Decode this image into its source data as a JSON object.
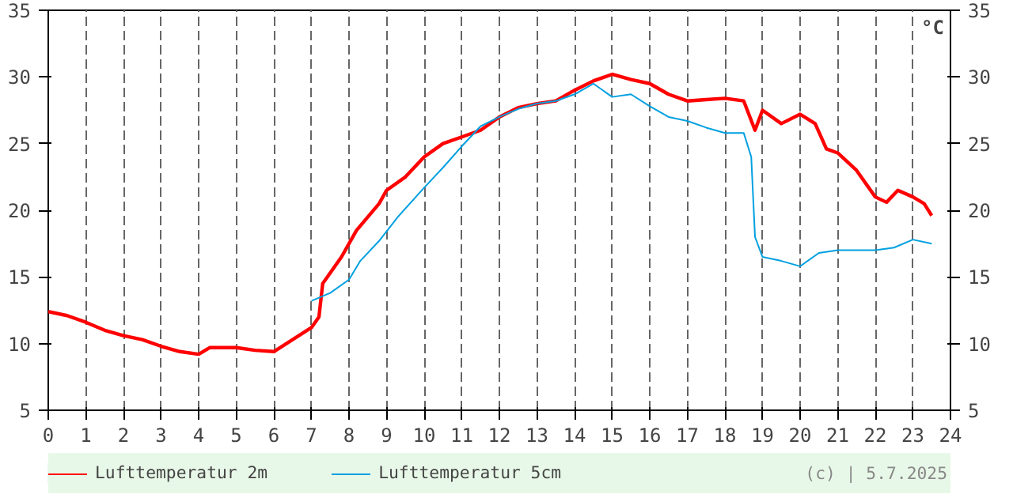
{
  "chart_data": {
    "type": "line",
    "y2label": "°C",
    "xlim": [
      0,
      24
    ],
    "xticks": [
      0,
      1,
      2,
      3,
      4,
      5,
      6,
      7,
      8,
      9,
      10,
      11,
      12,
      13,
      14,
      15,
      16,
      17,
      18,
      19,
      20,
      21,
      22,
      23,
      24
    ],
    "ylim": [
      5,
      35
    ],
    "yticks": [
      5,
      10,
      15,
      20,
      25,
      30,
      35
    ],
    "y2lim": [
      5,
      35
    ],
    "y2ticks": [
      5,
      10,
      15,
      20,
      25,
      30,
      35
    ],
    "grid": "x",
    "legend": "bottom",
    "annotations": [
      "(c) | 5.7.2025"
    ],
    "series": [
      {
        "name": "Lufttemperatur 2m",
        "color": "#ff0000",
        "x": [
          0,
          0.5,
          1,
          1.5,
          2,
          2.5,
          3,
          3.5,
          4,
          4.3,
          5,
          5.5,
          6,
          6.5,
          7,
          7.2,
          7.3,
          7.8,
          8.2,
          8.8,
          9,
          9.5,
          10,
          10.5,
          11,
          11.5,
          12,
          12.5,
          13,
          13.5,
          14,
          14.5,
          15,
          15.5,
          16,
          16.5,
          17,
          17.5,
          18,
          18.5,
          18.8,
          19,
          19.5,
          20,
          20.4,
          20.7,
          21,
          21.5,
          22,
          22.3,
          22.6,
          23,
          23.3,
          23.5
        ],
        "values": [
          12.4,
          12.1,
          11.6,
          11.0,
          10.6,
          10.3,
          9.8,
          9.4,
          9.2,
          9.7,
          9.7,
          9.5,
          9.4,
          10.3,
          11.2,
          12.0,
          14.5,
          16.5,
          18.5,
          20.5,
          21.5,
          22.5,
          24.0,
          25.0,
          25.5,
          26.0,
          27.0,
          27.7,
          28.0,
          28.2,
          29.0,
          29.7,
          30.2,
          29.8,
          29.5,
          28.7,
          28.2,
          28.3,
          28.4,
          28.2,
          26.0,
          27.5,
          26.5,
          27.2,
          26.5,
          24.6,
          24.3,
          23.0,
          21.0,
          20.6,
          21.5,
          21.0,
          20.5,
          19.6
        ]
      },
      {
        "name": "Lufttemperatur 5cm",
        "color": "#00a0e0",
        "x": [
          7.0,
          7.5,
          8,
          8.3,
          8.8,
          9.3,
          10,
          10.5,
          11,
          11.5,
          12,
          12.5,
          13,
          13.5,
          14,
          14.5,
          15,
          15.5,
          16,
          16.5,
          17,
          17.5,
          18,
          18.5,
          18.7,
          18.8,
          19,
          19.5,
          20,
          20.5,
          21,
          21.5,
          22,
          22.5,
          23,
          23.5
        ],
        "values": [
          13.2,
          13.8,
          14.8,
          16.2,
          17.7,
          19.5,
          21.7,
          23.2,
          24.8,
          26.3,
          27.0,
          27.6,
          28.0,
          28.2,
          28.7,
          29.5,
          28.5,
          28.7,
          27.8,
          27.0,
          26.7,
          26.2,
          25.8,
          25.8,
          24.0,
          18.0,
          16.5,
          16.2,
          15.8,
          16.8,
          17.0,
          17.0,
          17.0,
          17.2,
          17.8,
          17.5
        ]
      }
    ]
  }
}
